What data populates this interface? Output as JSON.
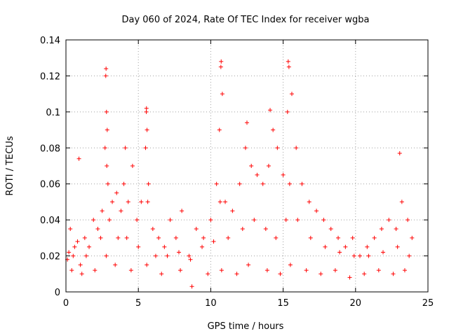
{
  "chart_data": {
    "type": "scatter",
    "title": "Day 060 of 2024, Rate Of TEC Index for receiver wgba",
    "xlabel": "GPS time / hours",
    "ylabel": "ROTI / TECUs",
    "xlim": [
      0,
      25
    ],
    "ylim": [
      0,
      0.14
    ],
    "xticks": [
      0,
      5,
      10,
      15,
      20,
      25
    ],
    "xtick_labels": [
      "0",
      "5",
      "10",
      "15",
      "20",
      "25"
    ],
    "yticks": [
      0,
      0.02,
      0.04,
      0.06,
      0.08,
      0.1,
      0.12,
      0.14
    ],
    "ytick_labels": [
      "0",
      "0.02",
      "0.04",
      "0.06",
      "0.08",
      "0.1",
      "0.12",
      "0.14"
    ],
    "grid": true,
    "marker": "+",
    "series_color": "#ff0000",
    "series": [
      {
        "name": "ROTI",
        "x": [
          0.1,
          0.2,
          0.3,
          0.5,
          0.8,
          1.0,
          1.3,
          1.6,
          1.9,
          2.2,
          2.5,
          2.7,
          2.75,
          2.8,
          2.85,
          2.9,
          3.0,
          3.2,
          3.5,
          3.8,
          4.0,
          4.3,
          4.6,
          4.9,
          5.2,
          5.5,
          5.55,
          5.6,
          5.7,
          6.0,
          6.4,
          6.8,
          7.2,
          7.6,
          8.0,
          8.5,
          9.0,
          9.5,
          10.0,
          10.4,
          10.6,
          10.7,
          10.8,
          11.0,
          11.5,
          12.0,
          12.4,
          12.8,
          13.2,
          13.6,
          14.0,
          14.3,
          14.6,
          15.0,
          15.3,
          15.4,
          15.6,
          15.9,
          16.3,
          16.8,
          17.3,
          17.8,
          18.3,
          18.8,
          19.3,
          19.8,
          20.3,
          20.8,
          21.3,
          21.8,
          22.3,
          22.8,
          23.2,
          23.6,
          23.9,
          0.4,
          1.1,
          2.0,
          2.78,
          3.4,
          4.5,
          5.58,
          6.6,
          7.9,
          8.7,
          9.8,
          10.75,
          11.8,
          12.6,
          13.9,
          14.8,
          15.5,
          16.6,
          17.6,
          18.6,
          19.6,
          20.6,
          21.6,
          22.6,
          23.4,
          0.6,
          1.4,
          2.4,
          2.82,
          3.6,
          4.2,
          5.0,
          5.65,
          6.2,
          7.0,
          7.8,
          8.6,
          9.4,
          10.2,
          10.65,
          11.2,
          12.2,
          13.0,
          13.8,
          14.5,
          15.2,
          15.45,
          16.0,
          16.9,
          17.9,
          18.9,
          19.9,
          20.9,
          21.9,
          22.9,
          23.7,
          10.72,
          15.35,
          2.77,
          5.56,
          14.1,
          12.5,
          23.05,
          0.9,
          4.1
        ],
        "y": [
          0.018,
          0.022,
          0.035,
          0.02,
          0.028,
          0.015,
          0.03,
          0.025,
          0.04,
          0.035,
          0.045,
          0.08,
          0.12,
          0.1,
          0.09,
          0.06,
          0.04,
          0.05,
          0.055,
          0.045,
          0.06,
          0.05,
          0.07,
          0.04,
          0.05,
          0.08,
          0.1,
          0.09,
          0.06,
          0.035,
          0.03,
          0.025,
          0.04,
          0.03,
          0.045,
          0.02,
          0.035,
          0.03,
          0.04,
          0.06,
          0.09,
          0.125,
          0.11,
          0.05,
          0.045,
          0.06,
          0.08,
          0.07,
          0.065,
          0.06,
          0.07,
          0.09,
          0.08,
          0.065,
          0.1,
          0.125,
          0.11,
          0.08,
          0.06,
          0.05,
          0.045,
          0.04,
          0.035,
          0.03,
          0.025,
          0.03,
          0.02,
          0.025,
          0.03,
          0.035,
          0.04,
          0.035,
          0.05,
          0.04,
          0.03,
          0.012,
          0.01,
          0.012,
          0.02,
          0.015,
          0.012,
          0.015,
          0.01,
          0.012,
          0.003,
          0.01,
          0.012,
          0.01,
          0.015,
          0.012,
          0.01,
          0.015,
          0.012,
          0.01,
          0.012,
          0.008,
          0.01,
          0.012,
          0.01,
          0.012,
          0.025,
          0.02,
          0.03,
          0.07,
          0.03,
          0.03,
          0.025,
          0.05,
          0.02,
          0.02,
          0.022,
          0.018,
          0.025,
          0.028,
          0.05,
          0.03,
          0.035,
          0.04,
          0.035,
          0.03,
          0.04,
          0.06,
          0.04,
          0.03,
          0.025,
          0.022,
          0.02,
          0.02,
          0.022,
          0.025,
          0.02,
          0.128,
          0.128,
          0.124,
          0.102,
          0.101,
          0.094,
          0.077,
          0.074,
          0.08
        ]
      }
    ]
  }
}
